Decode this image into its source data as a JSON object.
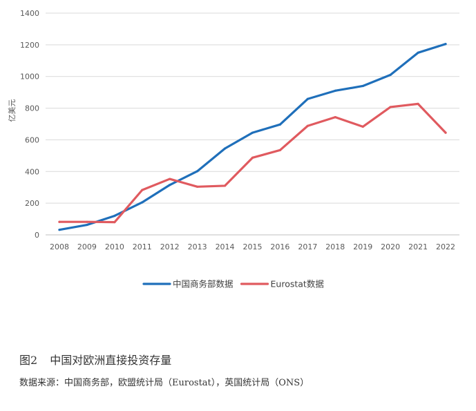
{
  "chart_data": {
    "type": "line",
    "ylabel": "亿美元",
    "ylim": [
      0,
      1400
    ],
    "yticks": [
      0,
      200,
      400,
      600,
      800,
      1000,
      1200,
      1400
    ],
    "x": [
      "2008",
      "2009",
      "2010",
      "2011",
      "2012",
      "2013",
      "2014",
      "2015",
      "2016",
      "2017",
      "2018",
      "2019",
      "2020",
      "2021",
      "2022"
    ],
    "grid": true,
    "legend": "bottom",
    "series": [
      {
        "name": "中国商务部数据",
        "color": "#1f6fba",
        "values": [
          32,
          63,
          120,
          205,
          315,
          402,
          545,
          645,
          697,
          858,
          910,
          940,
          1010,
          1150,
          1205
        ]
      },
      {
        "name": "Eurostat数据",
        "color": "#e05a5f",
        "values": [
          82,
          82,
          80,
          283,
          353,
          304,
          310,
          487,
          535,
          688,
          743,
          683,
          807,
          827,
          645
        ]
      }
    ]
  },
  "caption": {
    "figure_no": "图2",
    "title": "中国对欧洲直接投资存量"
  },
  "source": "数据来源：中国商务部，欧盟统计局（Eurostat），英国统计局（ONS）"
}
